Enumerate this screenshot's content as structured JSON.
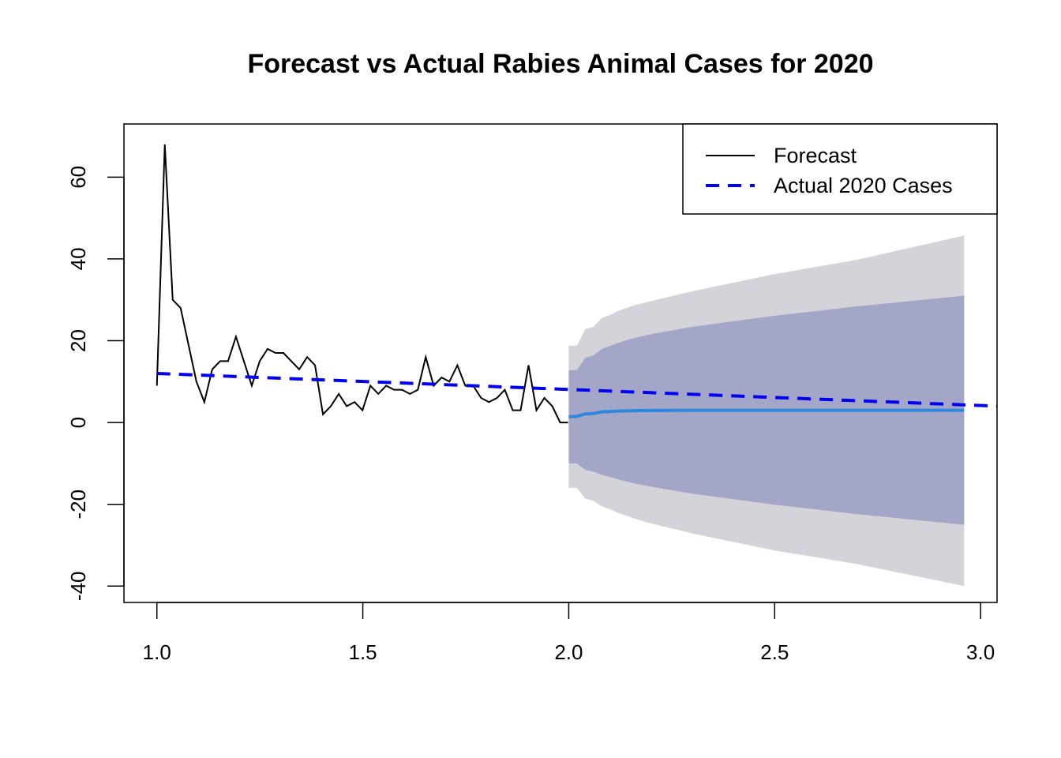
{
  "chart_data": {
    "type": "line",
    "title": "Forecast vs Actual Rabies Animal Cases for 2020",
    "xlabel": "",
    "ylabel": "",
    "xlim": [
      0.92,
      3.04
    ],
    "ylim": [
      -44,
      73
    ],
    "x_ticks": [
      "1.0",
      "1.5",
      "2.0",
      "2.5",
      "3.0"
    ],
    "x_tick_values": [
      1.0,
      1.5,
      2.0,
      2.5,
      3.0
    ],
    "y_ticks": [
      "-40",
      "-20",
      "0",
      "20",
      "40",
      "60"
    ],
    "y_tick_values": [
      -40,
      -20,
      0,
      20,
      40,
      60
    ],
    "grid": false,
    "legend": {
      "position": "top-right",
      "entries": [
        {
          "label": "Forecast",
          "color": "#000000",
          "style": "solid"
        },
        {
          "label": "Actual 2020 Cases",
          "color": "#0000ee",
          "style": "dashed"
        }
      ]
    },
    "historical": {
      "color": "#000000",
      "x_start": 1.0,
      "x_step": 0.0192,
      "values": [
        9,
        68,
        30,
        28,
        19,
        10,
        5,
        13,
        15,
        15,
        21,
        15,
        9,
        15,
        18,
        17,
        17,
        15,
        13,
        16,
        14,
        2,
        4,
        7,
        4,
        5,
        3,
        9,
        7,
        9,
        8,
        8,
        7,
        8,
        16,
        9,
        11,
        10,
        14,
        9,
        9,
        6,
        5,
        6,
        8,
        3,
        3,
        14,
        3,
        6,
        4,
        0,
        0
      ]
    },
    "forecast": {
      "color": "#2e86de",
      "x": [
        2.0,
        2.02,
        2.04,
        2.06,
        2.08,
        2.1,
        2.12,
        2.16,
        2.2,
        2.3,
        2.5,
        2.7,
        2.96
      ],
      "mean": [
        1.4,
        1.5,
        2.1,
        2.2,
        2.6,
        2.7,
        2.8,
        2.9,
        2.95,
        3.0,
        3.0,
        3.0,
        3.0
      ],
      "lo80": [
        -10,
        -10,
        -11.6,
        -12,
        -12.8,
        -13.3,
        -13.9,
        -14.9,
        -15.7,
        -17.4,
        -20.1,
        -22.4,
        -25
      ],
      "hi80": [
        12.8,
        12.8,
        15.8,
        16.4,
        18,
        18.7,
        19.5,
        20.7,
        21.6,
        23.4,
        26.1,
        28.4,
        31
      ],
      "lo95": [
        -16,
        -16,
        -18.6,
        -19.2,
        -20.5,
        -21.2,
        -22.1,
        -23.5,
        -24.7,
        -27.1,
        -31.3,
        -34.6,
        -40
      ],
      "hi95": [
        18.8,
        18.8,
        22.8,
        23.4,
        25.5,
        26.3,
        27.3,
        28.7,
        29.7,
        32.1,
        36.3,
        39.8,
        45.7
      ],
      "band80_color": "#a3a6c6",
      "band95_color": "#d3d3d9"
    },
    "actual_2020": {
      "color": "#0000ee",
      "style": "dashed",
      "x": [
        1.0,
        3.04
      ],
      "values": [
        12,
        4
      ]
    }
  }
}
